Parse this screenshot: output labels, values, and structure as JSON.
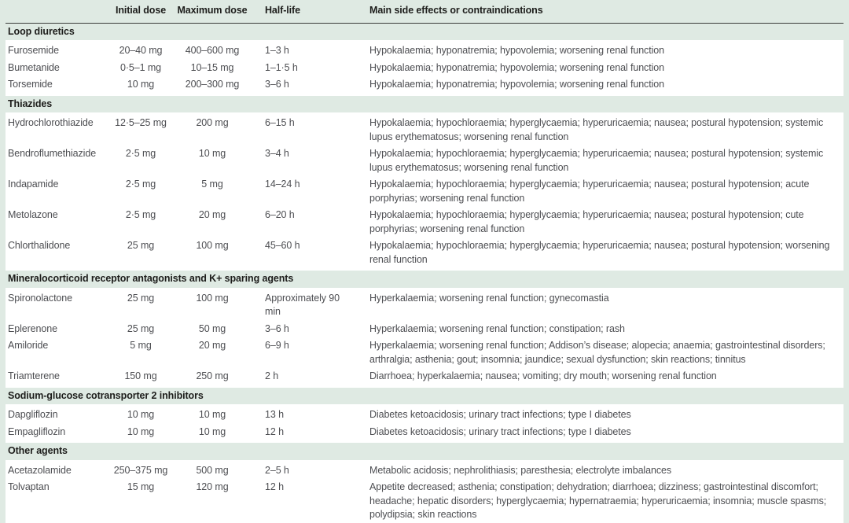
{
  "colors": {
    "table_green": "#dfeae3",
    "row_white": "#ffffff",
    "header_rule": "#3b3b3a",
    "heading_text": "#1d1d1b",
    "body_text": "#4d4e52"
  },
  "table": {
    "columns": [
      "",
      "Initial dose",
      "Maximum dose",
      "Half-life",
      "Main side effects or contraindications"
    ],
    "sections": [
      {
        "title": "Loop diuretics",
        "rows": [
          {
            "drug": "Furosemide",
            "initial_dose": "20–40 mg",
            "maximum_dose": "400–600 mg",
            "half_life": "1–3 h",
            "side_effects": "Hypokalaemia; hyponatremia; hypovolemia; worsening renal function"
          },
          {
            "drug": "Bumetanide",
            "initial_dose": "0·5–1 mg",
            "maximum_dose": "10–15 mg",
            "half_life": "1–1·5 h",
            "side_effects": "Hypokalaemia; hyponatremia; hypovolemia; worsening renal function"
          },
          {
            "drug": "Torsemide",
            "initial_dose": "10 mg",
            "maximum_dose": "200–300 mg",
            "half_life": "3–6 h",
            "side_effects": "Hypokalaemia; hyponatremia; hypovolemia; worsening renal function"
          }
        ]
      },
      {
        "title": "Thiazides",
        "rows": [
          {
            "drug": "Hydrochlorothiazide",
            "initial_dose": "12·5–25 mg",
            "maximum_dose": "200 mg",
            "half_life": "6–15 h",
            "side_effects": "Hypokalaemia; hypochloraemia; hyperglycaemia; hyperuricaemia; nausea; postural hypotension; systemic lupus erythematosus; worsening renal function"
          },
          {
            "drug": "Bendroflumethiazide",
            "initial_dose": "2·5 mg",
            "maximum_dose": "10 mg",
            "half_life": "3–4 h",
            "side_effects": "Hypokalaemia; hypochloraemia; hyperglycaemia; hyperuricaemia; nausea; postural hypotension; systemic lupus erythematosus; worsening renal function"
          },
          {
            "drug": "Indapamide",
            "initial_dose": "2·5 mg",
            "maximum_dose": "5 mg",
            "half_life": "14–24 h",
            "side_effects": "Hypokalaemia; hypochloraemia; hyperglycaemia; hyperuricaemia; nausea; postural hypotension; acute porphyrias; worsening renal function"
          },
          {
            "drug": "Metolazone",
            "initial_dose": "2·5 mg",
            "maximum_dose": "20 mg",
            "half_life": "6–20 h",
            "side_effects": "Hypokalaemia; hypochloraemia; hyperglycaemia; hyperuricaemia; nausea; postural hypotension; cute porphyrias; worsening renal function"
          },
          {
            "drug": "Chlorthalidone",
            "initial_dose": "25 mg",
            "maximum_dose": "100 mg",
            "half_life": "45–60 h",
            "side_effects": "Hypokalaemia; hypochloraemia; hyperglycaemia; hyperuricaemia; nausea; postural hypotension; worsening renal function"
          }
        ]
      },
      {
        "title": "Mineralocorticoid receptor antagonists and K+ sparing agents",
        "rows": [
          {
            "drug": "Spironolactone",
            "initial_dose": "25 mg",
            "maximum_dose": "100 mg",
            "half_life": "Approximately 90 min",
            "side_effects": "Hyperkalaemia; worsening renal function; gynecomastia"
          },
          {
            "drug": "Eplerenone",
            "initial_dose": "25 mg",
            "maximum_dose": "50 mg",
            "half_life": "3–6 h",
            "side_effects": "Hyperkalaemia; worsening renal function; constipation; rash"
          },
          {
            "drug": "Amiloride",
            "initial_dose": "5 mg",
            "maximum_dose": "20 mg",
            "half_life": "6–9 h",
            "side_effects": "Hyperkalaemia; worsening renal function; Addison’s disease; alopecia; anaemia; gastrointestinal disorders; arthralgia; asthenia; gout; insomnia; jaundice; sexual dysfunction; skin reactions; tinnitus"
          },
          {
            "drug": "Triamterene",
            "initial_dose": "150 mg",
            "maximum_dose": "250 mg",
            "half_life": "2 h",
            "side_effects": "Diarrhoea; hyperkalaemia; nausea; vomiting; dry mouth; worsening renal function"
          }
        ]
      },
      {
        "title": "Sodium-glucose cotransporter 2 inhibitors",
        "rows": [
          {
            "drug": "Dapgliflozin",
            "initial_dose": "10 mg",
            "maximum_dose": "10 mg",
            "half_life": "13 h",
            "side_effects": "Diabetes ketoacidosis; urinary tract infections; type I diabetes"
          },
          {
            "drug": "Empagliflozin",
            "initial_dose": "10 mg",
            "maximum_dose": "10 mg",
            "half_life": "12 h",
            "side_effects": "Diabetes ketoacidosis; urinary tract infections; type I diabetes"
          }
        ]
      },
      {
        "title": "Other agents",
        "rows": [
          {
            "drug": "Acetazolamide",
            "initial_dose": "250–375 mg",
            "maximum_dose": "500 mg",
            "half_life": "2–5 h",
            "side_effects": "Metabolic acidosis; nephrolithiasis; paresthesia; electrolyte imbalances"
          },
          {
            "drug": "Tolvaptan",
            "initial_dose": "15 mg",
            "maximum_dose": "120 mg",
            "half_life": "12 h",
            "side_effects": "Appetite decreased; asthenia; constipation; dehydration; diarrhoea; dizziness; gastrointestinal discomfort; headache; hepatic disorders; hyperglycaemia; hypernatraemia; hyperuricaemia; insomnia; muscle spasms; polydipsia; skin reactions"
          }
        ]
      }
    ]
  }
}
